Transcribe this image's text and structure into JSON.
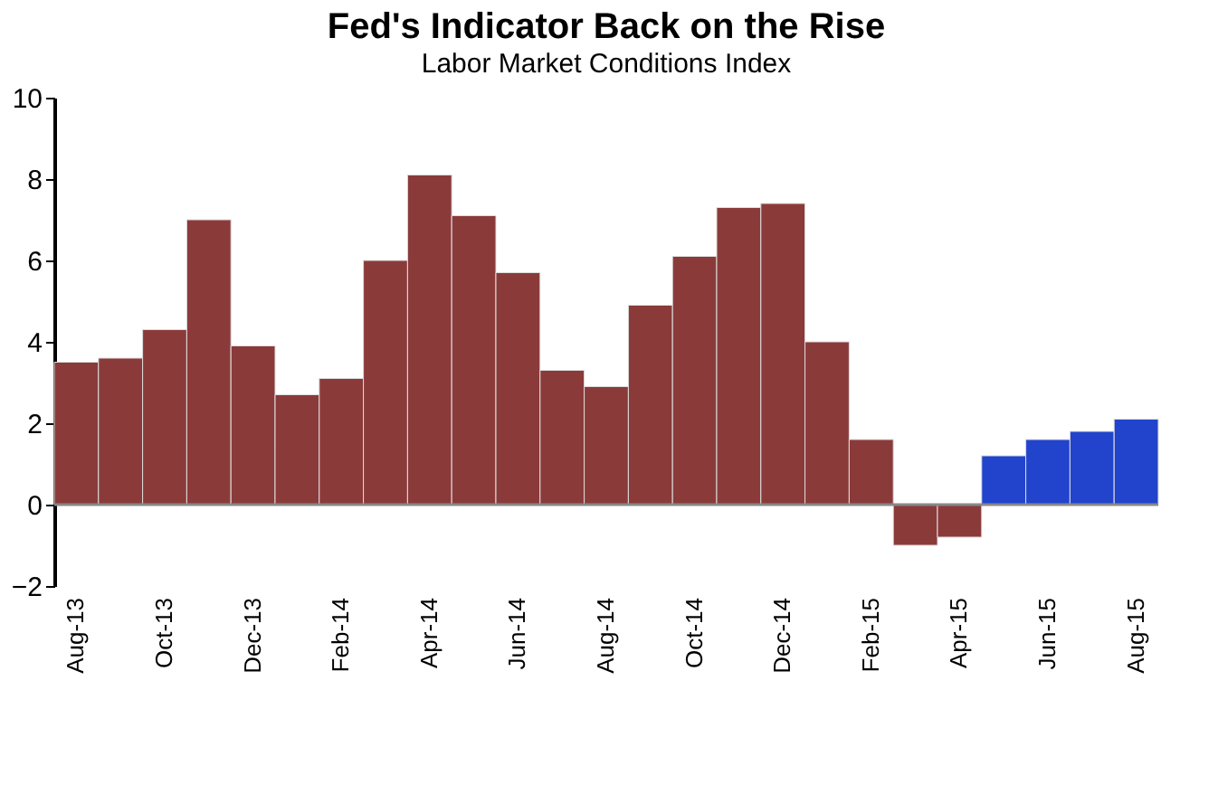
{
  "chart_data": {
    "type": "bar",
    "title": "Fed's Indicator Back on the Rise",
    "subtitle": "Labor Market Conditions Index",
    "categories": [
      "Aug-13",
      null,
      "Oct-13",
      null,
      "Dec-13",
      null,
      "Feb-14",
      null,
      "Apr-14",
      null,
      "Jun-14",
      null,
      "Aug-14",
      null,
      "Oct-14",
      null,
      "Dec-14",
      null,
      "Feb-15",
      null,
      "Apr-15",
      null,
      "Jun-15",
      null,
      "Aug-15"
    ],
    "values": [
      3.5,
      3.6,
      4.3,
      7.0,
      3.9,
      2.7,
      3.1,
      6.0,
      8.1,
      7.1,
      5.7,
      3.3,
      2.9,
      4.9,
      6.1,
      7.3,
      7.4,
      4.0,
      1.6,
      -1.0,
      -0.8,
      1.2,
      1.6,
      1.8,
      2.1
    ],
    "colors": [
      "#8b3a3a",
      "#8b3a3a",
      "#8b3a3a",
      "#8b3a3a",
      "#8b3a3a",
      "#8b3a3a",
      "#8b3a3a",
      "#8b3a3a",
      "#8b3a3a",
      "#8b3a3a",
      "#8b3a3a",
      "#8b3a3a",
      "#8b3a3a",
      "#8b3a3a",
      "#8b3a3a",
      "#8b3a3a",
      "#8b3a3a",
      "#8b3a3a",
      "#8b3a3a",
      "#8b3a3a",
      "#8b3a3a",
      "#2244cc",
      "#2244cc",
      "#2244cc",
      "#2244cc"
    ],
    "ylim": [
      -2,
      10
    ],
    "yticks": [
      -2,
      0,
      2,
      4,
      6,
      8,
      10
    ],
    "grid": false,
    "ref_lines": [
      {
        "axis": "y",
        "value": 0,
        "color": "#888888"
      }
    ]
  }
}
